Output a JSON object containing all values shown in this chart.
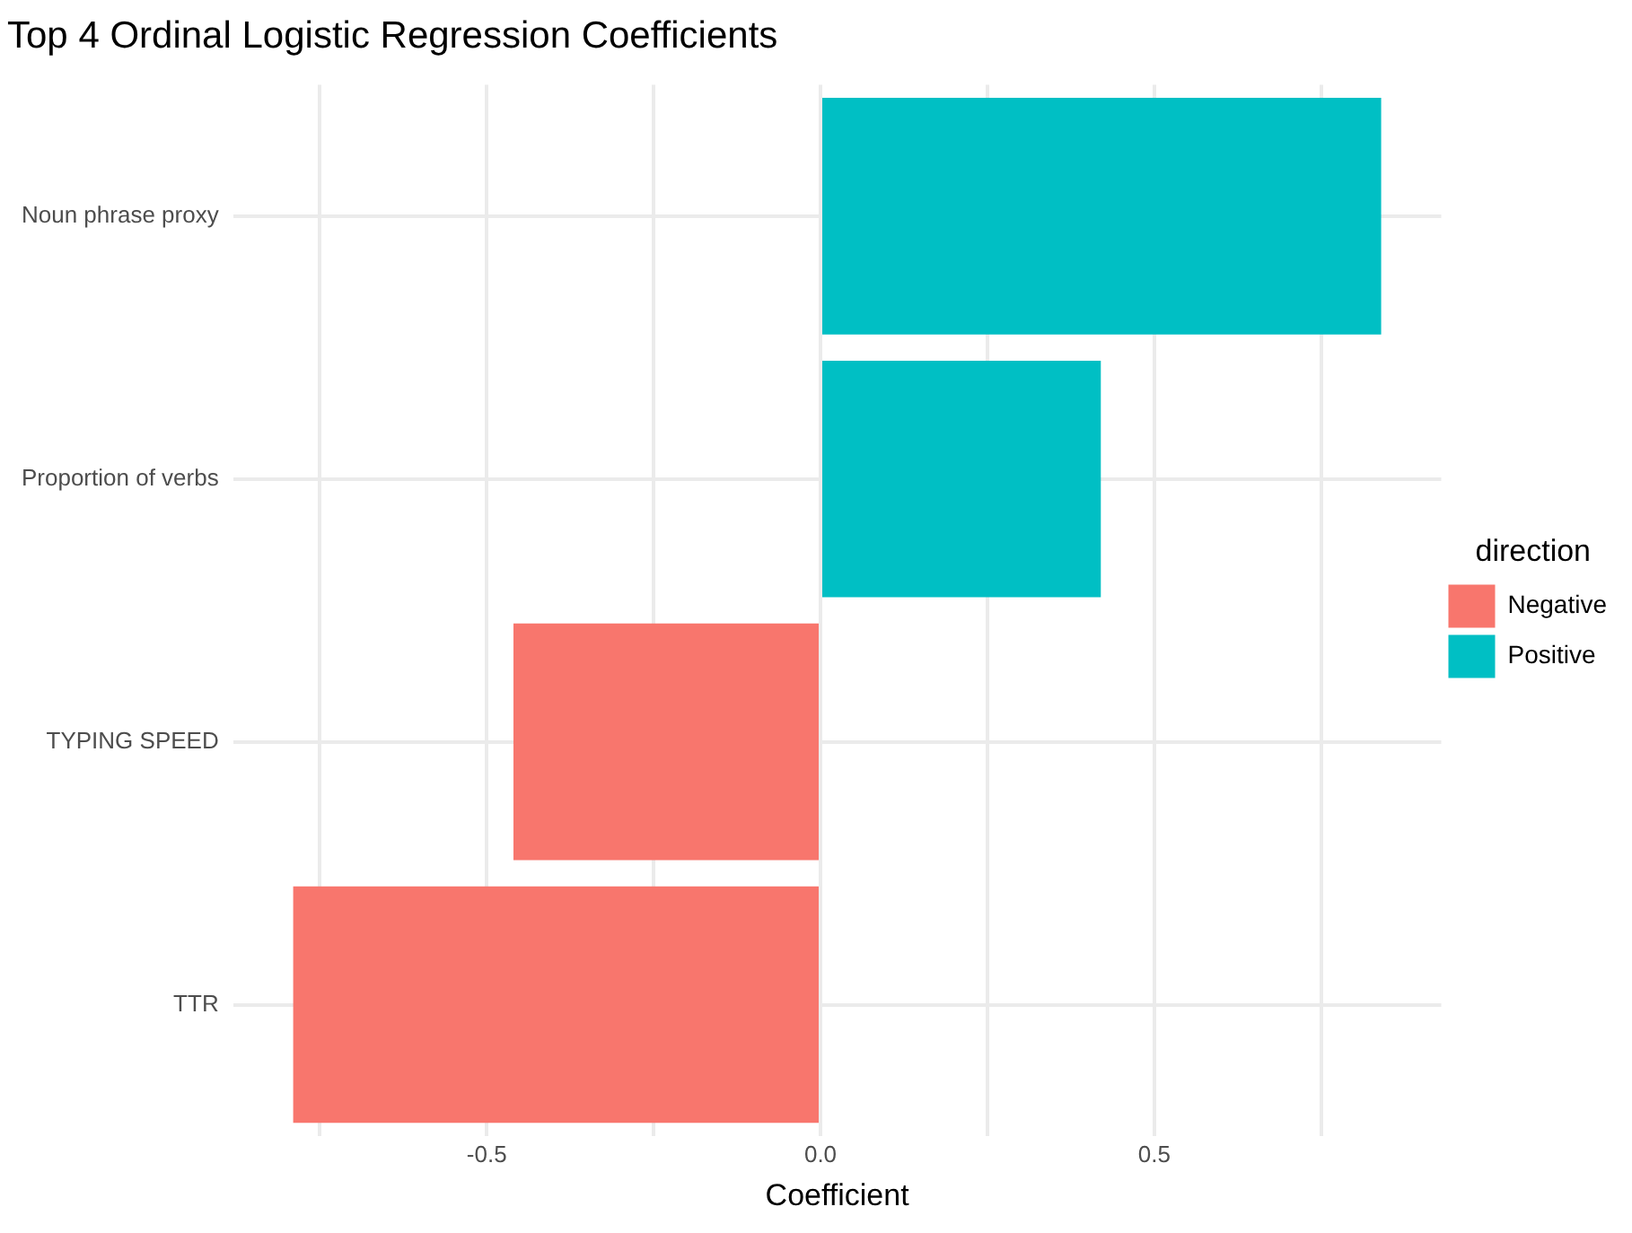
{
  "chart_data": {
    "type": "bar",
    "orientation": "horizontal",
    "stacked": true,
    "title": "Top 4 Ordinal Logistic Regression Coefficients",
    "xlabel": "Coefficient",
    "legend_title": "direction",
    "legend": "right",
    "grid": true,
    "categories": [
      "Noun phrase proxy",
      "Proportion of verbs",
      "TYPING SPEED",
      "TTR"
    ],
    "series": [
      {
        "name": "Negative",
        "color": "#f8766d",
        "values": [
          null,
          null,
          -0.46,
          -0.79
        ]
      },
      {
        "name": "Positive",
        "color": "#00bfc4",
        "values": [
          0.84,
          0.42,
          null,
          null
        ]
      }
    ],
    "xlim": [
      -0.88,
      0.93
    ],
    "xticks": [
      {
        "value": -0.75,
        "label": null
      },
      {
        "value": -0.5,
        "label": "-0.5"
      },
      {
        "value": -0.25,
        "label": null
      },
      {
        "value": 0,
        "label": "0.0"
      },
      {
        "value": 0.25,
        "label": null
      },
      {
        "value": 0.5,
        "label": "0.5"
      },
      {
        "value": 0.75,
        "label": null
      }
    ]
  }
}
